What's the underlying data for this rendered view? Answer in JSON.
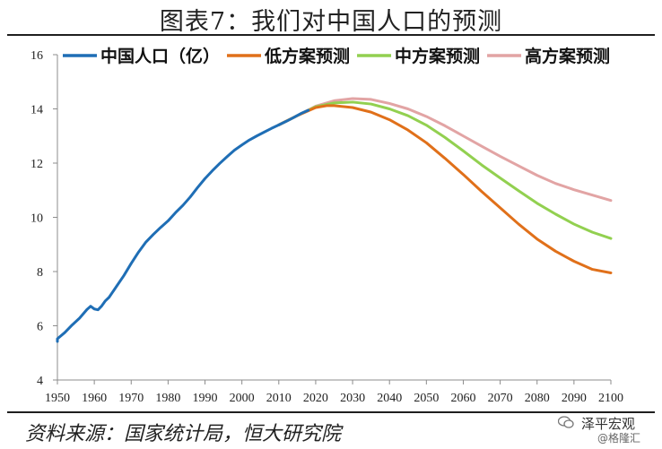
{
  "title": "图表7：我们对中国人口的预测",
  "source": "资料来源：国家统计局，恒大研究院",
  "watermark": {
    "line1": "泽平宏观",
    "line2": "@格隆汇"
  },
  "chart_data": {
    "type": "line",
    "title": "",
    "xlabel": "",
    "ylabel": "",
    "xlim": [
      1950,
      2100
    ],
    "ylim": [
      4,
      16
    ],
    "xticks": [
      1950,
      1960,
      1970,
      1980,
      1990,
      2000,
      2010,
      2020,
      2030,
      2040,
      2050,
      2060,
      2070,
      2080,
      2090,
      2100
    ],
    "yticks": [
      4,
      6,
      8,
      10,
      12,
      14,
      16
    ],
    "grid": false,
    "legend_position": "top",
    "series": [
      {
        "name": "中国人口（亿）",
        "color": "#1f6eb5",
        "x": [
          1949,
          1950,
          1952,
          1954,
          1956,
          1958,
          1959,
          1960,
          1961,
          1962,
          1963,
          1964,
          1965,
          1966,
          1968,
          1970,
          1972,
          1974,
          1976,
          1978,
          1980,
          1982,
          1984,
          1986,
          1988,
          1990,
          1992,
          1994,
          1996,
          1998,
          2000,
          2002,
          2004,
          2006,
          2008,
          2010,
          2012,
          2014,
          2016,
          2018
        ],
        "y": [
          5.42,
          5.52,
          5.75,
          6.03,
          6.28,
          6.6,
          6.72,
          6.62,
          6.59,
          6.73,
          6.92,
          7.05,
          7.25,
          7.45,
          7.85,
          8.3,
          8.72,
          9.09,
          9.37,
          9.63,
          9.87,
          10.17,
          10.44,
          10.75,
          11.1,
          11.43,
          11.72,
          11.99,
          12.24,
          12.48,
          12.67,
          12.85,
          13.0,
          13.14,
          13.28,
          13.41,
          13.54,
          13.68,
          13.83,
          13.95
        ]
      },
      {
        "name": "低方案预测",
        "color": "#e0701a",
        "x": [
          2010,
          2015,
          2020,
          2023,
          2025,
          2030,
          2035,
          2040,
          2045,
          2050,
          2055,
          2060,
          2065,
          2070,
          2075,
          2080,
          2085,
          2090,
          2095,
          2100
        ],
        "y": [
          13.41,
          13.75,
          14.05,
          14.12,
          14.12,
          14.05,
          13.88,
          13.6,
          13.22,
          12.75,
          12.18,
          11.58,
          10.95,
          10.35,
          9.75,
          9.2,
          8.75,
          8.38,
          8.08,
          7.95
        ]
      },
      {
        "name": "中方案预测",
        "color": "#92d050",
        "x": [
          2010,
          2015,
          2020,
          2025,
          2030,
          2035,
          2040,
          2045,
          2050,
          2055,
          2060,
          2065,
          2070,
          2075,
          2080,
          2085,
          2090,
          2095,
          2100
        ],
        "y": [
          13.41,
          13.75,
          14.08,
          14.22,
          14.25,
          14.18,
          14.0,
          13.75,
          13.4,
          12.95,
          12.45,
          11.93,
          11.45,
          10.98,
          10.52,
          10.12,
          9.75,
          9.45,
          9.22
        ]
      },
      {
        "name": "高方案预测",
        "color": "#e2a4a4",
        "x": [
          2010,
          2015,
          2020,
          2025,
          2030,
          2035,
          2040,
          2045,
          2050,
          2055,
          2060,
          2065,
          2070,
          2075,
          2080,
          2085,
          2090,
          2095,
          2100
        ],
        "y": [
          13.41,
          13.75,
          14.1,
          14.3,
          14.38,
          14.35,
          14.2,
          14.0,
          13.72,
          13.38,
          13.0,
          12.62,
          12.25,
          11.9,
          11.55,
          11.25,
          11.02,
          10.82,
          10.62
        ]
      }
    ]
  }
}
